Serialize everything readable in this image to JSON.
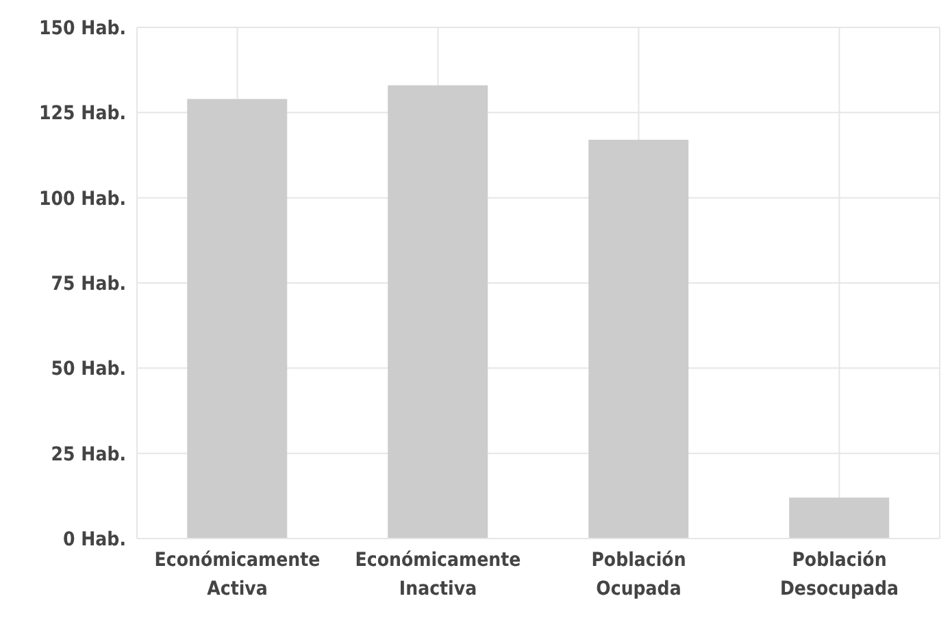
{
  "chart_data": {
    "type": "bar",
    "categories": [
      "Económicamente Activa",
      "Económicamente Inactiva",
      "Población Ocupada",
      "Población Desocupada"
    ],
    "values": [
      129,
      133,
      117,
      12
    ],
    "color": "#cccccc",
    "ylim": [
      0,
      150
    ],
    "yticks": [
      {
        "value": 0,
        "label": "0 Hab."
      },
      {
        "value": 25,
        "label": "25 Hab."
      },
      {
        "value": 50,
        "label": "50 Hab."
      },
      {
        "value": 75,
        "label": "75 Hab."
      },
      {
        "value": 100,
        "label": "100 Hab."
      },
      {
        "value": 125,
        "label": "125 Hab."
      },
      {
        "value": 150,
        "label": "150 Hab."
      }
    ],
    "grid": true
  }
}
